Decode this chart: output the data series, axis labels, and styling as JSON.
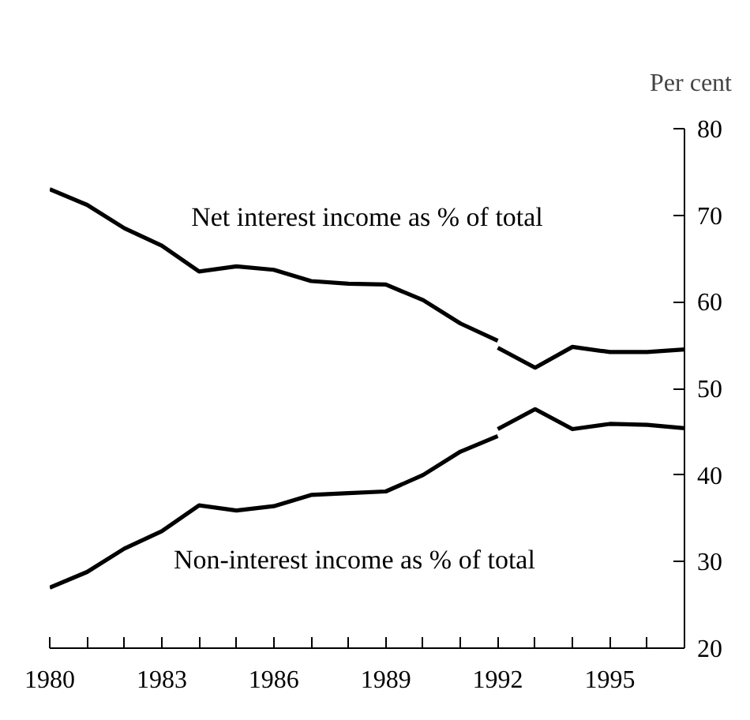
{
  "chart_data": {
    "type": "line",
    "ylabel": "Per cent",
    "xlim": [
      1980,
      1997
    ],
    "ylim": [
      20,
      80
    ],
    "xticks": [
      1980,
      {
        "value": 1981,
        "label": null
      },
      {
        "value": 1982,
        "label": null
      },
      1983,
      {
        "value": 1984,
        "label": null
      },
      {
        "value": 1985,
        "label": null
      },
      1986,
      {
        "value": 1987,
        "label": null
      },
      {
        "value": 1988,
        "label": null
      },
      1989,
      {
        "value": 1990,
        "label": null
      },
      {
        "value": 1991,
        "label": null
      },
      1992,
      {
        "value": 1993,
        "label": null
      },
      {
        "value": 1994,
        "label": null
      },
      1995,
      {
        "value": 1996,
        "label": null
      },
      {
        "value": 1997,
        "label": null
      }
    ],
    "yticks": [
      20,
      30,
      40,
      50,
      60,
      70,
      80
    ],
    "series": [
      {
        "name": "Net interest income as % of total",
        "color": "#000000",
        "x": [
          1980,
          1981,
          1982,
          1983,
          1984,
          1985,
          1986,
          1987,
          1988,
          1989,
          1990,
          1991,
          1992
        ],
        "values": [
          73,
          71.2,
          68.5,
          66.5,
          63.5,
          64.1,
          63.7,
          62.4,
          62.1,
          62.0,
          60.2,
          57.5,
          55.5
        ]
      },
      {
        "color": "#000000",
        "x": [
          1992,
          1993,
          1994,
          1995,
          1996,
          1997
        ],
        "values": [
          54.7,
          52.4,
          54.8,
          54.2,
          54.2,
          54.5
        ]
      },
      {
        "name": "Non-interest income as % of total",
        "color": "#000000",
        "x": [
          1980,
          1981,
          1982,
          1983,
          1984,
          1985,
          1986,
          1987,
          1988,
          1989,
          1990,
          1991,
          1992
        ],
        "values": [
          27,
          28.8,
          31.5,
          33.5,
          36.5,
          35.9,
          36.4,
          37.7,
          37.9,
          38.1,
          40.0,
          42.7,
          44.5
        ]
      },
      {
        "color": "#000000",
        "x": [
          1992,
          1993,
          1994,
          1995,
          1996,
          1997
        ],
        "values": [
          45.3,
          47.6,
          45.3,
          45.9,
          45.8,
          45.4
        ]
      }
    ],
    "legend": false,
    "grid": false,
    "marker": "none",
    "line_style": "solid"
  }
}
